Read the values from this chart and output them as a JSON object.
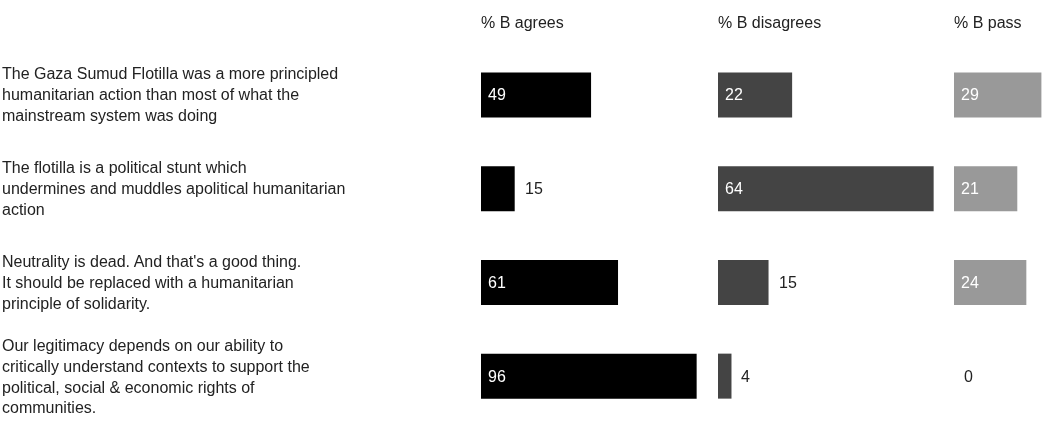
{
  "chart_data": [
    {
      "type": "bar",
      "orientation": "horizontal",
      "title": "% B agrees",
      "categories": [
        "The Gaza Sumud Flotilla was a more principled humanitarian action than most of what the mainstream system was doing",
        "The flotilla is a political stunt which undermines and muddles apolitical humanitarian action",
        "Neutrality is dead. And that's a good thing. It should be replaced with a humanitarian principle of solidarity.",
        "Our legitimacy depends on our ability to critically understand contexts to support the political, social & economic rights of communities."
      ],
      "values": [
        49,
        15,
        61,
        96
      ],
      "color": "#000000",
      "data_labels": true,
      "tick_labels": "y"
    },
    {
      "type": "bar",
      "orientation": "horizontal",
      "title": "% B disagrees",
      "values": [
        22,
        64,
        15,
        4
      ],
      "color": "#444444",
      "data_labels": true,
      "tick_labels": false
    },
    {
      "type": "bar",
      "orientation": "horizontal",
      "title": "% B pass",
      "values": [
        29,
        21,
        24,
        0
      ],
      "color": "#999999",
      "data_labels": true,
      "tick_labels": false
    }
  ]
}
